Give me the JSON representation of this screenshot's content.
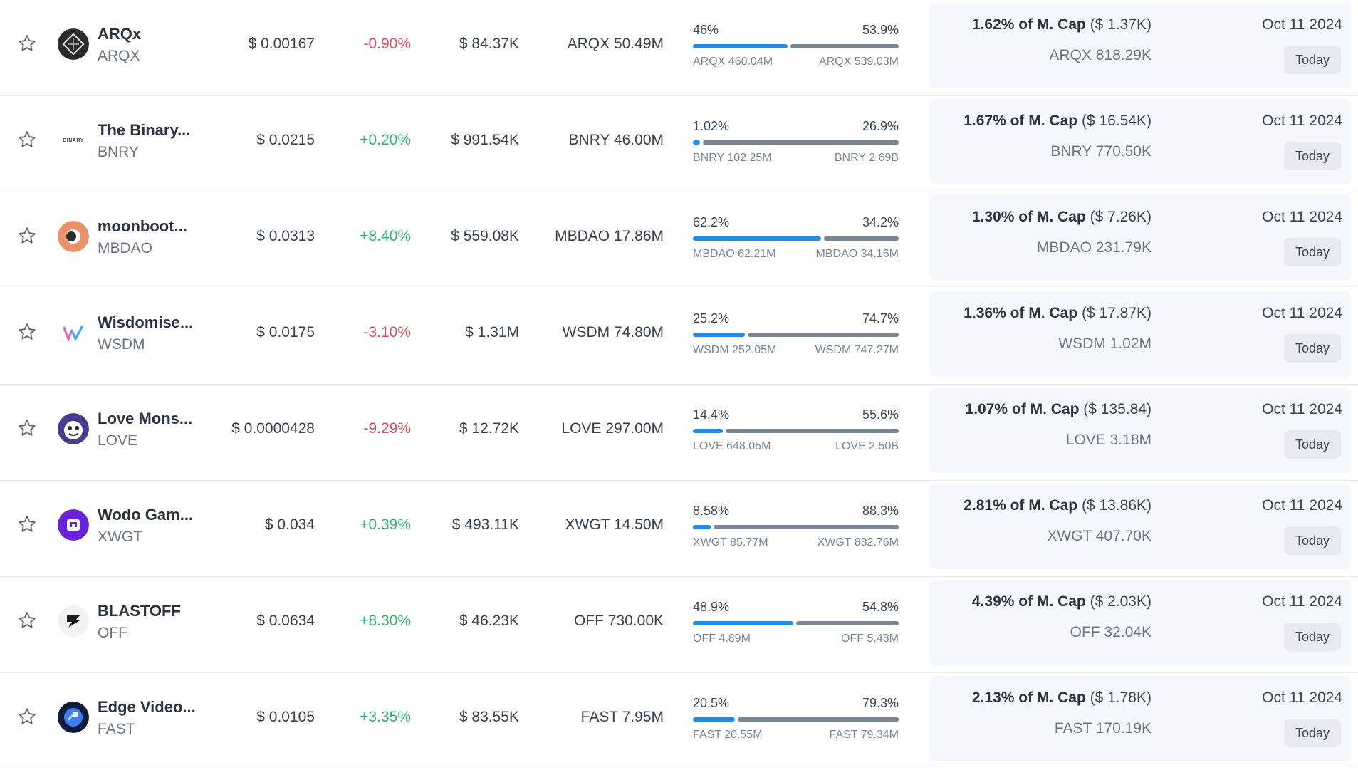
{
  "rows": [
    {
      "name": "ARQx",
      "symbol": "ARQX",
      "price": "$ 0.00167",
      "change": "-0.90%",
      "change_dir": "down",
      "volume": "$ 84.37K",
      "supply": "ARQX 50.49M",
      "unlocked_pct": "46%",
      "locked_pct": "53.9%",
      "unlocked_fraction": 0.46,
      "locked_fraction": 0.539,
      "unlocked_amt": "ARQX 460.04M",
      "locked_amt": "ARQX 539.03M",
      "next_pct": "1.62% of M. Cap",
      "next_usd": "($ 1.37K)",
      "next_amt": "ARQX 818.29K",
      "date": "Oct 11 2024",
      "badge": "Today",
      "logo_icon": "arqx-logo-icon"
    },
    {
      "name": "The Binary...",
      "symbol": "BNRY",
      "price": "$ 0.0215",
      "change": "+0.20%",
      "change_dir": "up",
      "volume": "$ 991.54K",
      "supply": "BNRY 46.00M",
      "unlocked_pct": "1.02%",
      "locked_pct": "26.9%",
      "unlocked_fraction": 0.0102,
      "locked_fraction": 0.269,
      "unlocked_amt": "BNRY 102.25M",
      "locked_amt": "BNRY 2.69B",
      "next_pct": "1.67% of M. Cap",
      "next_usd": "($ 16.54K)",
      "next_amt": "BNRY 770.50K",
      "date": "Oct 11 2024",
      "badge": "Today",
      "logo_icon": "binary-logo-icon",
      "logo_text": "BINARY"
    },
    {
      "name": "moonboot...",
      "symbol": "MBDAO",
      "price": "$ 0.0313",
      "change": "+8.40%",
      "change_dir": "up",
      "volume": "$ 559.08K",
      "supply": "MBDAO 17.86M",
      "unlocked_pct": "62.2%",
      "locked_pct": "34.2%",
      "unlocked_fraction": 0.622,
      "locked_fraction": 0.342,
      "unlocked_amt": "MBDAO 62.21M",
      "locked_amt": "MBDAO 34.16M",
      "next_pct": "1.30% of M. Cap",
      "next_usd": "($ 7.26K)",
      "next_amt": "MBDAO 231.79K",
      "date": "Oct 11 2024",
      "badge": "Today",
      "logo_icon": "moonboots-logo-icon"
    },
    {
      "name": "Wisdomise...",
      "symbol": "WSDM",
      "price": "$ 0.0175",
      "change": "-3.10%",
      "change_dir": "down",
      "volume": "$ 1.31M",
      "supply": "WSDM 74.80M",
      "unlocked_pct": "25.2%",
      "locked_pct": "74.7%",
      "unlocked_fraction": 0.252,
      "locked_fraction": 0.747,
      "unlocked_amt": "WSDM 252.05M",
      "locked_amt": "WSDM 747.27M",
      "next_pct": "1.36% of M. Cap",
      "next_usd": "($ 17.87K)",
      "next_amt": "WSDM 1.02M",
      "date": "Oct 11 2024",
      "badge": "Today",
      "logo_icon": "wisdomise-logo-icon"
    },
    {
      "name": "Love Mons...",
      "symbol": "LOVE",
      "price": "$ 0.0000428",
      "change": "-9.29%",
      "change_dir": "down",
      "volume": "$ 12.72K",
      "supply": "LOVE 297.00M",
      "unlocked_pct": "14.4%",
      "locked_pct": "55.6%",
      "unlocked_fraction": 0.144,
      "locked_fraction": 0.556,
      "unlocked_amt": "LOVE 648.05M",
      "locked_amt": "LOVE 2.50B",
      "next_pct": "1.07% of M. Cap",
      "next_usd": "($ 135.84)",
      "next_amt": "LOVE 3.18M",
      "date": "Oct 11 2024",
      "badge": "Today",
      "logo_icon": "love-monster-logo-icon"
    },
    {
      "name": "Wodo Gam...",
      "symbol": "XWGT",
      "price": "$ 0.034",
      "change": "+0.39%",
      "change_dir": "up",
      "volume": "$ 493.11K",
      "supply": "XWGT 14.50M",
      "unlocked_pct": "8.58%",
      "locked_pct": "88.3%",
      "unlocked_fraction": 0.0858,
      "locked_fraction": 0.883,
      "unlocked_amt": "XWGT 85.77M",
      "locked_amt": "XWGT 882.76M",
      "next_pct": "2.81% of M. Cap",
      "next_usd": "($ 13.86K)",
      "next_amt": "XWGT 407.70K",
      "date": "Oct 11 2024",
      "badge": "Today",
      "logo_icon": "wodo-logo-icon"
    },
    {
      "name": "BLASTOFF",
      "symbol": "OFF",
      "price": "$ 0.0634",
      "change": "+8.30%",
      "change_dir": "up",
      "volume": "$ 46.23K",
      "supply": "OFF 730.00K",
      "unlocked_pct": "48.9%",
      "locked_pct": "54.8%",
      "unlocked_fraction": 0.489,
      "locked_fraction": 0.548,
      "unlocked_amt": "OFF 4.89M",
      "locked_amt": "OFF 5.48M",
      "next_pct": "4.39% of M. Cap",
      "next_usd": "($ 2.03K)",
      "next_amt": "OFF 32.04K",
      "date": "Oct 11 2024",
      "badge": "Today",
      "logo_icon": "blastoff-logo-icon"
    },
    {
      "name": "Edge Video...",
      "symbol": "FAST",
      "price": "$ 0.0105",
      "change": "+3.35%",
      "change_dir": "up",
      "volume": "$ 83.55K",
      "supply": "FAST 7.95M",
      "unlocked_pct": "20.5%",
      "locked_pct": "79.3%",
      "unlocked_fraction": 0.205,
      "locked_fraction": 0.793,
      "unlocked_amt": "FAST 20.55M",
      "locked_amt": "FAST 79.34M",
      "next_pct": "2.13% of M. Cap",
      "next_usd": "($ 1.78K)",
      "next_amt": "FAST 170.19K",
      "date": "Oct 11 2024",
      "badge": "Today",
      "logo_icon": "edge-video-logo-icon"
    }
  ],
  "colors": {
    "up": "#2fb36c",
    "down": "#e04a59",
    "unlocked_bar": "#1e8de8",
    "locked_bar": "#7b8591"
  },
  "icons": {
    "favorite": "star-outline-icon"
  }
}
